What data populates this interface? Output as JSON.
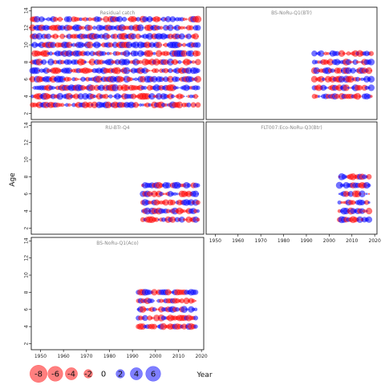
{
  "chart_data": {
    "type": "scatter",
    "xlabel": "Year",
    "ylabel": "Age",
    "xticks": [
      "1950",
      "1960",
      "1970",
      "1980",
      "1990",
      "2000",
      "2010",
      "2020"
    ],
    "yticks": [
      "2",
      "4",
      "6",
      "8",
      "10",
      "12",
      "14"
    ],
    "xlim": [
      1946,
      2021
    ],
    "ylim": [
      1.3,
      14.4
    ],
    "colors": {
      "positive": "#0000ff",
      "negative": "#ff0000"
    },
    "legend": {
      "placement": "bottom-left",
      "entries": [
        "-8",
        "-6",
        "-4",
        "-2",
        "0",
        "2",
        "4",
        "6"
      ]
    },
    "panels": [
      {
        "title": "Residual catch",
        "x_range": [
          1946,
          2018
        ],
        "ages": [
          3,
          4,
          5,
          6,
          7,
          8,
          9,
          10,
          11,
          12,
          13
        ],
        "seed": 11
      },
      {
        "title": "BS-NoRu-Q1(BTr)",
        "x_range": [
          1993,
          2018
        ],
        "ages": [
          4,
          5,
          6,
          7,
          8,
          9
        ],
        "seed": 23
      },
      {
        "title": "RU-BTr-Q4",
        "x_range": [
          1994,
          2018
        ],
        "ages": [
          3,
          4,
          5,
          6,
          7
        ],
        "seed": 37
      },
      {
        "title": "FLT007:Eco-NoRu-Q3(Btr)",
        "x_range": [
          2004,
          2017
        ],
        "ages": [
          3,
          4,
          5,
          6,
          7,
          8
        ],
        "seed": 41
      },
      {
        "title": "BS-NoRu-Q1(Aco)",
        "x_range": [
          1992,
          2017
        ],
        "ages": [
          4,
          5,
          6,
          7,
          8
        ],
        "seed": 53
      }
    ]
  }
}
